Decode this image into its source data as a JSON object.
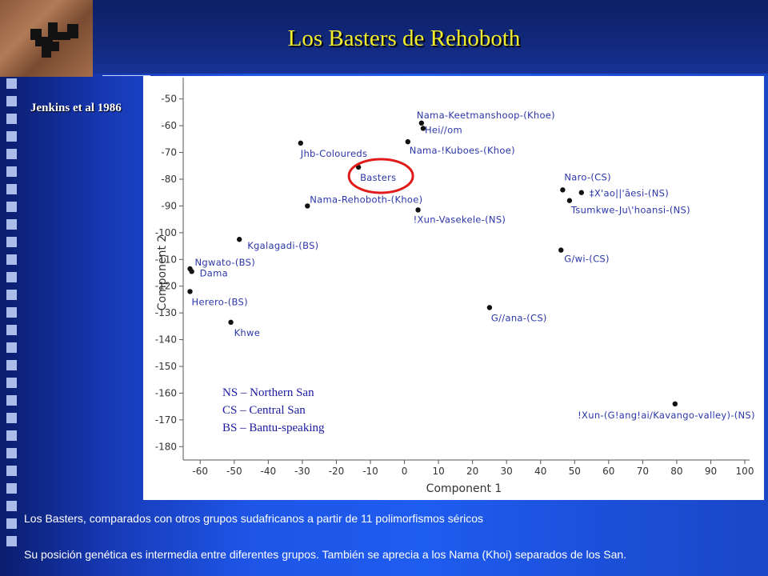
{
  "slide": {
    "title": "Los Basters de Rehoboth",
    "citation": "Jenkins et al 1986",
    "caption_1": "Los Basters, comparados con otros grupos sudafricanos a partir de 11 polimorfismos séricos",
    "caption_2": "Su posición genética es intermedia entre diferentes grupos. También se aprecia a los Nama (Khoi) separados de los San."
  },
  "chart_data": {
    "type": "scatter",
    "xlabel": "Component 1",
    "ylabel": "Component 2",
    "xlim": [
      -65,
      100
    ],
    "ylim": [
      -185,
      -45
    ],
    "xticks": [
      -60,
      -50,
      -40,
      -30,
      -20,
      -10,
      0,
      10,
      20,
      30,
      40,
      50,
      60,
      70,
      80,
      90,
      100
    ],
    "yticks": [
      -50,
      -60,
      -70,
      -80,
      -90,
      -100,
      -110,
      -120,
      -130,
      -140,
      -150,
      -160,
      -170,
      -180
    ],
    "points": [
      {
        "label": "Nama-Keetmanshoop-(Khoe)",
        "x": 5,
        "y": -59
      },
      {
        "label": "Hei//om",
        "x": 5.5,
        "y": -61
      },
      {
        "label": "Nama-!Kuboes-(Khoe)",
        "x": 1,
        "y": -66
      },
      {
        "label": "Jhb-Coloureds",
        "x": -30.5,
        "y": -66.5
      },
      {
        "label": "Basters",
        "x": -13.5,
        "y": -75.5
      },
      {
        "label": "Nama-Rehoboth-(Khoe)",
        "x": -28.5,
        "y": -90
      },
      {
        "label": "!Xun-Vasekele-(NS)",
        "x": 4,
        "y": -91.5
      },
      {
        "label": "Naro-(CS)",
        "x": 46.5,
        "y": -84
      },
      {
        "label": "‡X'ao||'āesi-(NS)",
        "x": 52,
        "y": -85
      },
      {
        "label": "Tsumkwe-Ju\\'hoansi-(NS)",
        "x": 48.5,
        "y": -88
      },
      {
        "label": "Kgalagadi-(BS)",
        "x": -48.5,
        "y": -102.5
      },
      {
        "label": "Ngwato-(BS)",
        "x": -63,
        "y": -113.5
      },
      {
        "label": "Dama",
        "x": -62.5,
        "y": -114.5
      },
      {
        "label": "G/wi-(CS)",
        "x": 46,
        "y": -106.5
      },
      {
        "label": "Herero-(BS)",
        "x": -63,
        "y": -122
      },
      {
        "label": "G//ana-(CS)",
        "x": 25,
        "y": -128
      },
      {
        "label": "Khwe",
        "x": -51,
        "y": -133.5
      },
      {
        "label": "!Xun-(G!ang!ai/Kavango-valley)-(NS)",
        "x": 79.5,
        "y": -164
      }
    ],
    "highlight": {
      "label": "Basters",
      "color": "#e01b1b"
    },
    "legend": [
      "NS – Northern San",
      "CS – Central San",
      "BS – Bantu-speaking"
    ],
    "point_color": "#111111",
    "label_color": "#2a36a8"
  }
}
